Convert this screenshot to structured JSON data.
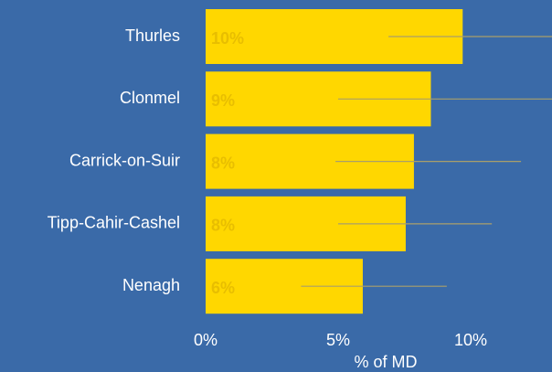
{
  "chart_data": {
    "type": "barh",
    "categories": [
      "Thurles",
      "Clonmel",
      "Carrick-on-Suir",
      "Tipp-Cahir-Cashel",
      "Nenagh"
    ],
    "values": [
      9.7,
      8.5,
      7.86,
      7.55,
      5.93
    ],
    "value_labels": [
      "10%",
      "9%",
      "8%",
      "8%",
      "6%"
    ],
    "ci_low": [
      6.9,
      5.0,
      4.9,
      5.0,
      3.6
    ],
    "ci_high": [
      13.07,
      13.07,
      11.9,
      10.8,
      9.1
    ],
    "color": "#ffd700",
    "label_color": "#e8be00",
    "error_color": "#a99f6a",
    "background": "#3a6aa8",
    "xlabel": "% of MD",
    "xlim": [
      0,
      13.07
    ],
    "xticks": [
      {
        "value": 0,
        "label": "0%"
      },
      {
        "value": 5,
        "label": "5%"
      },
      {
        "value": 10,
        "label": "10%"
      }
    ]
  }
}
